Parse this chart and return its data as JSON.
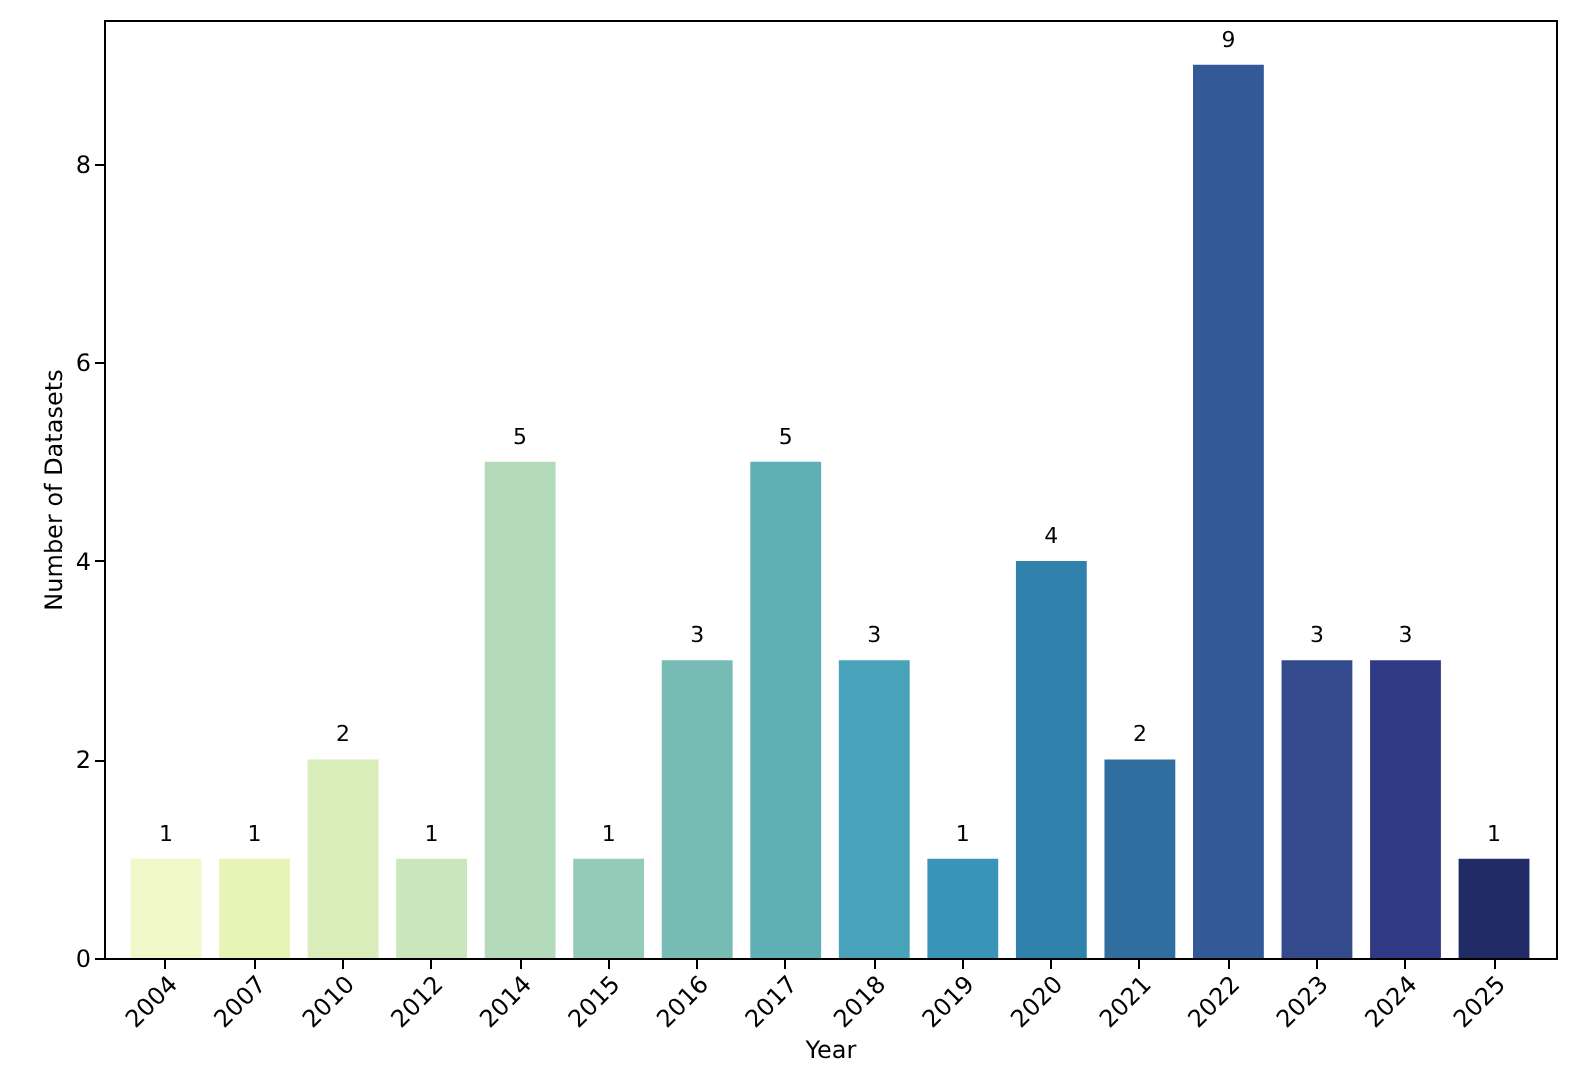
{
  "chart_data": {
    "type": "bar",
    "xlabel": "Year",
    "ylabel": "Number of Datasets",
    "categories": [
      "2004",
      "2007",
      "2010",
      "2012",
      "2014",
      "2015",
      "2016",
      "2017",
      "2018",
      "2019",
      "2020",
      "2021",
      "2022",
      "2023",
      "2024",
      "2025"
    ],
    "values": [
      1,
      1,
      2,
      1,
      5,
      1,
      3,
      5,
      3,
      1,
      4,
      2,
      9,
      3,
      3,
      1
    ],
    "colors": [
      "#f1f8c9",
      "#e8f4b6",
      "#d9edbb",
      "#cae7bc",
      "#b3dabb",
      "#93cbb8",
      "#77bcb4",
      "#5eb0b6",
      "#48a2b9",
      "#3a93b9",
      "#3081ac",
      "#306ea0",
      "#335a96",
      "#334a8d",
      "#303a84",
      "#212c67"
    ],
    "ylim": [
      0,
      9.45
    ],
    "yticks": [
      0,
      2,
      4,
      6,
      8
    ],
    "data_labels": true,
    "grid": false
  }
}
